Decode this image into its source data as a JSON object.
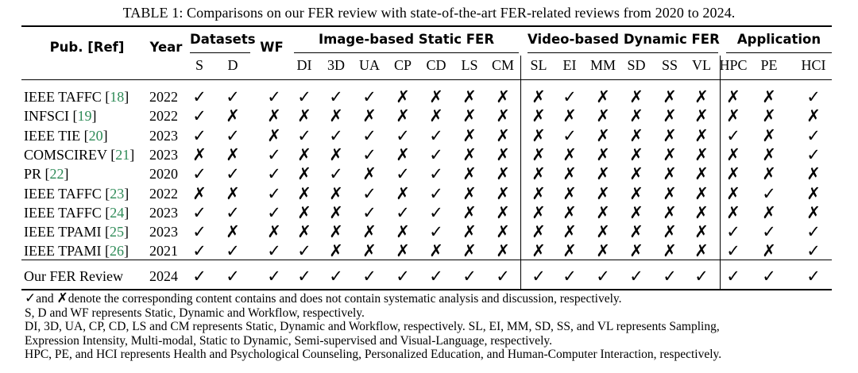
{
  "caption": "TABLE 1: Comparisons on our FER review with state-of-the-art FER-related reviews from 2020 to 2024.",
  "header": {
    "pub": "Pub. [Ref]",
    "year": "Year",
    "datasets": "Datasets",
    "wf": "WF",
    "static_group": "Image-based Static FER",
    "dynamic_group": "Video-based Dynamic FER",
    "application_group": "Application",
    "sub": [
      "S",
      "D",
      "DI",
      "3D",
      "UA",
      "CP",
      "CD",
      "LS",
      "CM",
      "SL",
      "EI",
      "MM",
      "SD",
      "SS",
      "VL",
      "HPC",
      "PE",
      "HCI"
    ]
  },
  "rows": [
    {
      "pub": "IEEE TAFFC",
      "ref": "18",
      "year": "2022",
      "vals": [
        "✓",
        "✓",
        "✓",
        "✓",
        "✓",
        "✓",
        "✗",
        "✗",
        "✗",
        "✗",
        "✗",
        "✓",
        "✗",
        "✗",
        "✗",
        "✗",
        "✗",
        "✗",
        "✓"
      ]
    },
    {
      "pub": "INFSCI",
      "ref": "19",
      "year": "2022",
      "vals": [
        "✓",
        "✗",
        "✗",
        "✗",
        "✗",
        "✗",
        "✗",
        "✗",
        "✗",
        "✗",
        "✗",
        "✗",
        "✗",
        "✗",
        "✗",
        "✗",
        "✗",
        "✗",
        "✗"
      ]
    },
    {
      "pub": "IEEE TIE",
      "ref": "20",
      "year": "2023",
      "vals": [
        "✓",
        "✓",
        "✗",
        "✓",
        "✓",
        "✓",
        "✓",
        "✓",
        "✗",
        "✗",
        "✗",
        "✓",
        "✗",
        "✗",
        "✗",
        "✗",
        "✓",
        "✗",
        "✓"
      ]
    },
    {
      "pub": "COMSCIREV",
      "ref": "21",
      "year": "2023",
      "vals": [
        "✗",
        "✗",
        "✓",
        "✗",
        "✗",
        "✓",
        "✗",
        "✓",
        "✗",
        "✗",
        "✗",
        "✗",
        "✗",
        "✗",
        "✗",
        "✗",
        "✗",
        "✗",
        "✓"
      ]
    },
    {
      "pub": "PR",
      "ref": "22",
      "year": "2020",
      "vals": [
        "✓",
        "✓",
        "✓",
        "✗",
        "✓",
        "✗",
        "✓",
        "✓",
        "✗",
        "✗",
        "✗",
        "✗",
        "✗",
        "✗",
        "✗",
        "✗",
        "✗",
        "✗",
        "✗"
      ]
    },
    {
      "pub": "IEEE TAFFC",
      "ref": "23",
      "year": "2022",
      "vals": [
        "✗",
        "✗",
        "✓",
        "✗",
        "✗",
        "✓",
        "✗",
        "✓",
        "✗",
        "✗",
        "✗",
        "✗",
        "✗",
        "✗",
        "✗",
        "✗",
        "✗",
        "✓",
        "✗"
      ]
    },
    {
      "pub": "IEEE TAFFC",
      "ref": "24",
      "year": "2023",
      "vals": [
        "✓",
        "✓",
        "✓",
        "✗",
        "✗",
        "✓",
        "✓",
        "✓",
        "✗",
        "✗",
        "✗",
        "✗",
        "✗",
        "✗",
        "✗",
        "✗",
        "✗",
        "✗",
        "✗"
      ]
    },
    {
      "pub": "IEEE TPAMI",
      "ref": "25",
      "year": "2023",
      "vals": [
        "✓",
        "✗",
        "✗",
        "✗",
        "✗",
        "✗",
        "✗",
        "✓",
        "✗",
        "✗",
        "✗",
        "✗",
        "✗",
        "✗",
        "✗",
        "✗",
        "✓",
        "✓",
        "✓"
      ]
    },
    {
      "pub": "IEEE TPAMI",
      "ref": "26",
      "year": "2021",
      "vals": [
        "✓",
        "✓",
        "✓",
        "✓",
        "✗",
        "✗",
        "✗",
        "✗",
        "✗",
        "✗",
        "✗",
        "✗",
        "✗",
        "✗",
        "✗",
        "✗",
        "✓",
        "✗",
        "✓"
      ]
    }
  ],
  "final_row": {
    "pub": "Our FER Review",
    "year": "2024",
    "vals": [
      "✓",
      "✓",
      "✓",
      "✓",
      "✓",
      "✓",
      "✓",
      "✓",
      "✓",
      "✓",
      "✓",
      "✓",
      "✓",
      "✓",
      "✓",
      "✓",
      "✓",
      "✓",
      "✓"
    ]
  },
  "notes": {
    "line1_check": "✓",
    "line1_and": "and",
    "line1_cross": "✗",
    "line1_rest": "denote the corresponding content contains and does not contain systematic analysis and discussion, respectively.",
    "line2": "S, D and WF represents Static, Dynamic and Workflow, respectively.",
    "line3": "DI, 3D, UA, CP, CD, LS and CM represents Static, Dynamic and Workflow, respectively. SL, EI, MM, SD, SS, and VL represents Sampling,",
    "line4": "Expression Intensity, Multi-modal, Static to Dynamic, Semi-supervised and Visual-Language, respectively.",
    "line5": "HPC, PE, and HCI represents Health and Psychological Counseling, Personalized Education, and Human-Computer Interaction, respectively."
  }
}
